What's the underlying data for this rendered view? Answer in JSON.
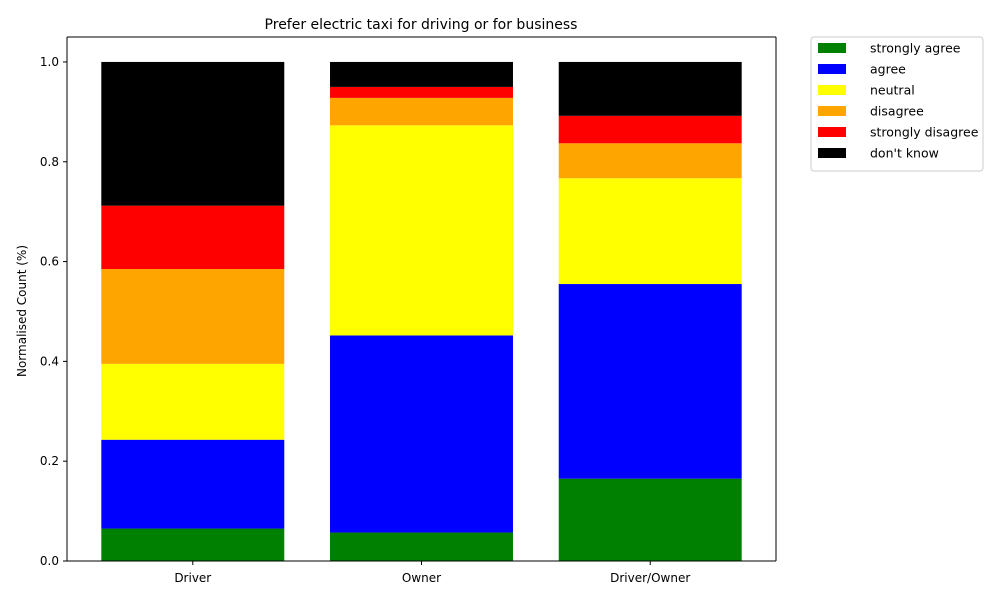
{
  "chart_data": {
    "type": "bar",
    "stacked": true,
    "title": "Prefer electric taxi for driving or for business",
    "xlabel": "",
    "ylabel": "Normalised Count (%)",
    "categories": [
      "Driver",
      "Owner",
      "Driver/Owner"
    ],
    "ylim": [
      0,
      1.05
    ],
    "yticks": [
      "0.0",
      "0.2",
      "0.4",
      "0.6",
      "0.8",
      "1.0"
    ],
    "grid": false,
    "legend_position": "outside-top-right",
    "series": [
      {
        "name": "strongly agree",
        "color": "#008000",
        "values": [
          0.065,
          0.057,
          0.165
        ]
      },
      {
        "name": "agree",
        "color": "#0000ff",
        "values": [
          0.178,
          0.395,
          0.39
        ]
      },
      {
        "name": "neutral",
        "color": "#ffff00",
        "values": [
          0.152,
          0.421,
          0.212
        ]
      },
      {
        "name": "disagree",
        "color": "#ffa500",
        "values": [
          0.19,
          0.055,
          0.07
        ]
      },
      {
        "name": "strongly disagree",
        "color": "#ff0000",
        "values": [
          0.127,
          0.022,
          0.055
        ]
      },
      {
        "name": "don't know",
        "color": "#000000",
        "values": [
          0.288,
          0.05,
          0.108
        ]
      }
    ]
  }
}
